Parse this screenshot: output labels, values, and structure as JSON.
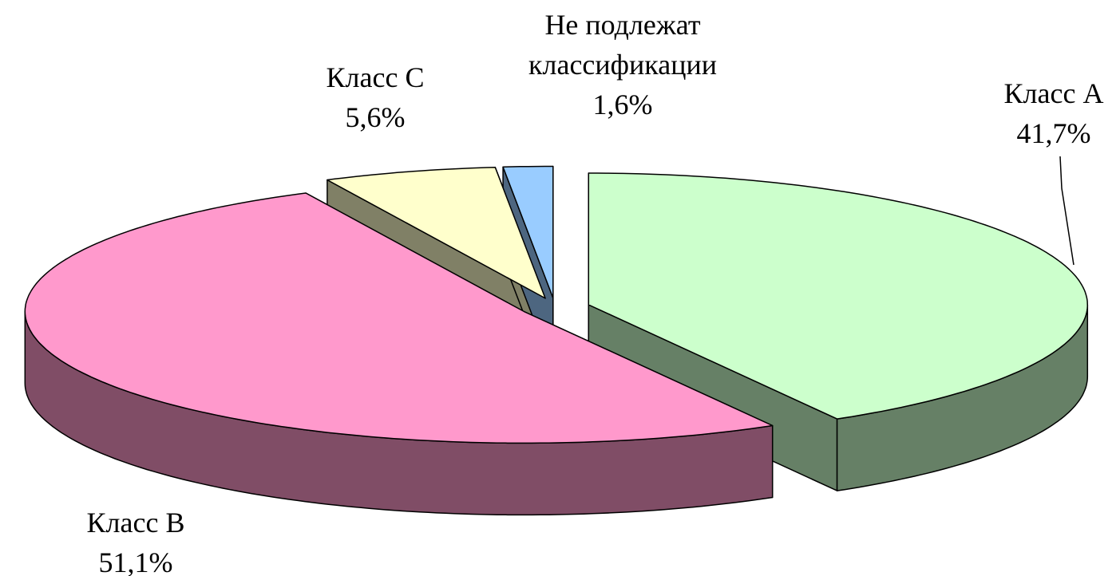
{
  "chart_data": {
    "type": "pie",
    "categories": [
      "Класс A",
      "Класс B",
      "Класс C",
      "Не подлежат классификации"
    ],
    "values": [
      41.7,
      51.1,
      5.6,
      1.6
    ],
    "value_labels": [
      "41,7%",
      "51,1%",
      "5,6%",
      "1,6%"
    ],
    "colors": [
      "#ccffcc",
      "#ff99cc",
      "#ffffcc",
      "#99ccff"
    ]
  }
}
